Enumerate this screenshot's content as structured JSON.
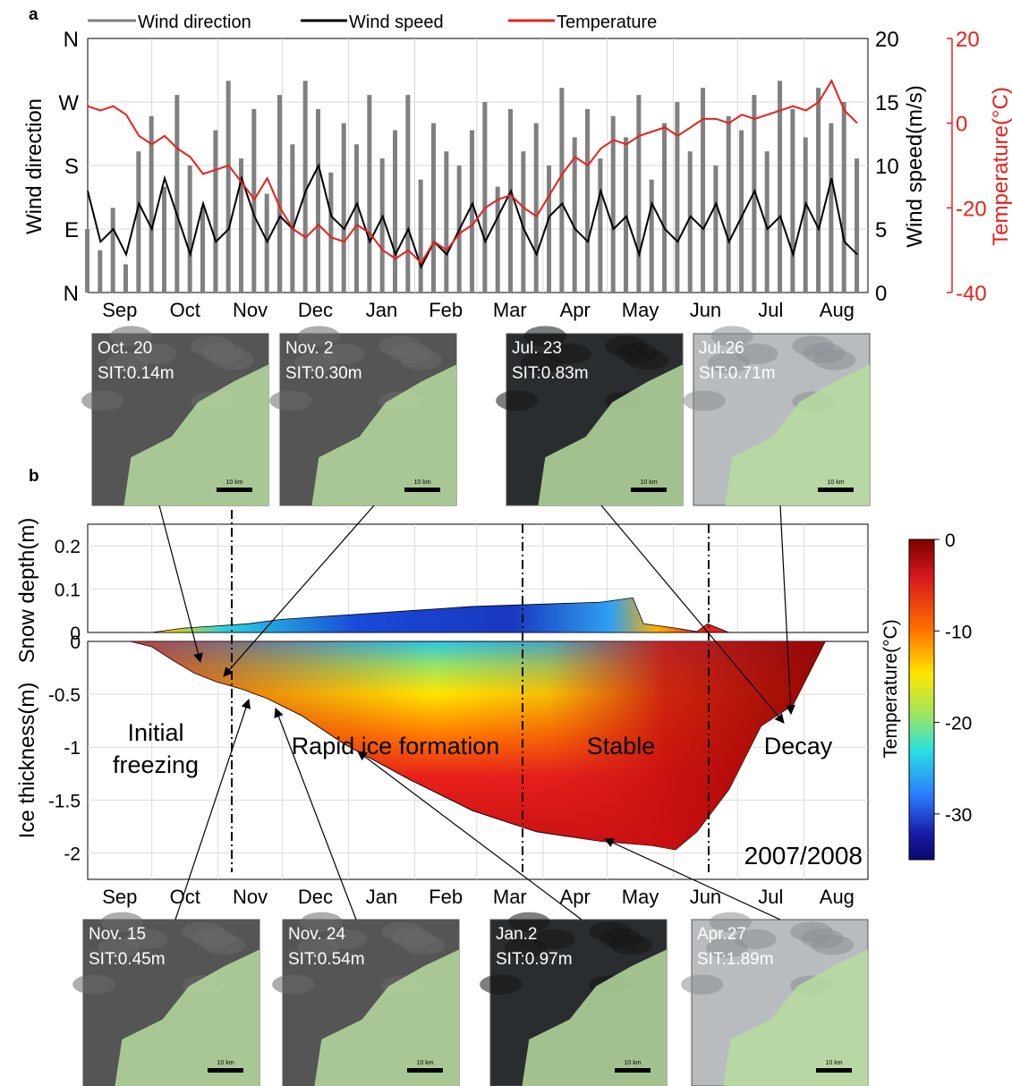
{
  "colors": {
    "wind_direction": "#808080",
    "wind_speed": "#000000",
    "temperature": "#e8201c",
    "right_axis_temperature": "#e8201c",
    "colorbar": [
      "#7f0000",
      "#d7191c",
      "#ff6f00",
      "#ffe600",
      "#9be564",
      "#28e0e0",
      "#2b7bff",
      "#1a1aa6",
      "#0a0a6e"
    ]
  },
  "panel_labels": {
    "a": "a",
    "b": "b"
  },
  "months": [
    "Sep",
    "Oct",
    "Nov",
    "Dec",
    "Jan",
    "Feb",
    "Mar",
    "Apr",
    "May",
    "Jun",
    "Jul",
    "Aug"
  ],
  "chart_data": [
    {
      "type": "line",
      "panel": "a",
      "legend": [
        "Wind direction",
        "Wind speed",
        "Temperature"
      ],
      "legend_placement": "top",
      "xlabel": "",
      "ylabel_left": "Wind direction",
      "ylabel_right": "Wind speed(m/s)",
      "ylabel_far_right": "Temperature(°C)",
      "left_ticks": [
        "N",
        "W",
        "S",
        "E",
        "N"
      ],
      "wind_speed_ticks": [
        "20",
        "15",
        "10",
        "5",
        "0"
      ],
      "temperature_ticks": [
        "20",
        "0",
        "-20",
        "-40"
      ],
      "wind_speed_ylim": [
        0,
        20
      ],
      "temperature_ylim": [
        -40,
        20
      ],
      "grid": true,
      "x_unit": "day index from 1 Sep 2007",
      "series": [
        {
          "name": "Temperature",
          "x": [
            0,
            6,
            12,
            18,
            24,
            30,
            36,
            42,
            48,
            54,
            60,
            66,
            72,
            78,
            84,
            90,
            96,
            102,
            108,
            114,
            120,
            126,
            132,
            138,
            144,
            150,
            156,
            162,
            168,
            174,
            180,
            186,
            192,
            198,
            204,
            210,
            216,
            222,
            228,
            234,
            240,
            246,
            252,
            258,
            264,
            270,
            276,
            282,
            288,
            294,
            300,
            306,
            312,
            318,
            324,
            330,
            336,
            342,
            348,
            354,
            360
          ],
          "values": [
            4,
            3,
            4,
            2,
            -3,
            -5,
            -3,
            -6,
            -8,
            -12,
            -11,
            -10,
            -14,
            -18,
            -13,
            -20,
            -25,
            -27,
            -24,
            -27,
            -28,
            -24,
            -26,
            -30,
            -32,
            -30,
            -33,
            -28,
            -30,
            -26,
            -24,
            -20,
            -18,
            -17,
            -20,
            -22,
            -17,
            -12,
            -8,
            -10,
            -6,
            -4,
            -5,
            -3,
            -2,
            -1,
            -3,
            -1,
            1,
            1,
            0,
            2,
            1,
            2,
            3,
            4,
            3,
            5,
            10,
            3,
            0
          ]
        },
        {
          "name": "Wind speed",
          "x": [
            0,
            6,
            12,
            18,
            24,
            30,
            36,
            42,
            48,
            54,
            60,
            66,
            72,
            78,
            84,
            90,
            96,
            102,
            108,
            114,
            120,
            126,
            132,
            138,
            144,
            150,
            156,
            162,
            168,
            174,
            180,
            186,
            192,
            198,
            204,
            210,
            216,
            222,
            228,
            234,
            240,
            246,
            252,
            258,
            264,
            270,
            276,
            282,
            288,
            294,
            300,
            306,
            312,
            318,
            324,
            330,
            336,
            342,
            348,
            354,
            360
          ],
          "values": [
            8,
            4,
            5,
            3,
            7,
            5,
            9,
            6,
            3,
            7,
            4,
            5,
            9,
            6,
            4,
            6,
            5,
            8,
            10,
            6,
            5,
            7,
            4,
            6,
            3,
            5,
            2,
            4,
            3,
            5,
            7,
            4,
            6,
            8,
            5,
            3,
            6,
            7,
            5,
            4,
            8,
            5,
            6,
            3,
            7,
            5,
            4,
            6,
            5,
            7,
            4,
            6,
            8,
            5,
            6,
            3,
            7,
            5,
            9,
            4,
            3
          ]
        },
        {
          "name": "Wind direction",
          "x": [
            0,
            6,
            12,
            18,
            24,
            30,
            36,
            42,
            48,
            54,
            60,
            66,
            72,
            78,
            84,
            90,
            96,
            102,
            108,
            114,
            120,
            126,
            132,
            138,
            144,
            150,
            156,
            162,
            168,
            174,
            180,
            186,
            192,
            198,
            204,
            210,
            216,
            222,
            228,
            234,
            240,
            246,
            252,
            258,
            264,
            270,
            276,
            282,
            288,
            294,
            300,
            306,
            312,
            318,
            324,
            330,
            336,
            342,
            348,
            354,
            360
          ],
          "values": [
            90,
            60,
            120,
            40,
            200,
            250,
            150,
            280,
            180,
            120,
            230,
            300,
            190,
            260,
            140,
            280,
            210,
            300,
            260,
            170,
            240,
            210,
            280,
            190,
            230,
            280,
            160,
            240,
            200,
            180,
            230,
            270,
            150,
            260,
            200,
            240,
            180,
            290,
            220,
            260,
            190,
            250,
            220,
            280,
            160,
            240,
            270,
            200,
            290,
            180,
            250,
            230,
            280,
            200,
            300,
            260,
            220,
            290,
            240,
            270,
            190
          ]
        }
      ]
    },
    {
      "type": "area",
      "panel": "b-snow",
      "ylabel": "Snow depth(m)",
      "yticks": [
        "0.2",
        "0.1",
        "0"
      ],
      "ylim": [
        0,
        0.25
      ],
      "x_unit": "day index from 1 Sep 2007",
      "x": [
        0,
        30,
        45,
        60,
        75,
        90,
        120,
        150,
        180,
        210,
        240,
        255,
        260,
        275,
        285,
        290,
        300,
        320,
        360
      ],
      "values": [
        0,
        0,
        0.01,
        0.015,
        0.02,
        0.03,
        0.04,
        0.05,
        0.06,
        0.065,
        0.07,
        0.08,
        0.02,
        0.01,
        0.002,
        0.02,
        0,
        0,
        0
      ]
    },
    {
      "type": "area",
      "panel": "b-ice",
      "ylabel": "Ice thickness(m)",
      "yticks": [
        "0",
        "-0.5",
        "-1",
        "-1.5",
        "-2"
      ],
      "ylim": [
        -2.25,
        0
      ],
      "x_unit": "day index from 1 Sep 2007",
      "x": [
        0,
        20,
        30,
        40,
        50,
        60,
        72,
        84,
        100,
        120,
        150,
        180,
        210,
        240,
        264,
        275,
        285,
        300,
        315,
        330,
        345,
        360
      ],
      "values": [
        0,
        0,
        -0.05,
        -0.18,
        -0.3,
        -0.38,
        -0.45,
        -0.54,
        -0.7,
        -0.97,
        -1.3,
        -1.6,
        -1.8,
        -1.89,
        -1.93,
        -1.97,
        -1.8,
        -1.4,
        -0.8,
        -0.6,
        0,
        0
      ],
      "phases": [
        "Initial\nfreezing",
        "Rapid ice formation",
        "Stable",
        "Decay"
      ],
      "year_label": "2007/2008",
      "colorbar": {
        "label": "Temperature(°C)",
        "ticks": [
          "0",
          "-10",
          "-20",
          "-30"
        ],
        "range": [
          -35,
          0
        ]
      }
    }
  ],
  "thumbnails_top": [
    {
      "date": "Oct. 20",
      "sit": "SIT:0.14m",
      "scale": "10 km"
    },
    {
      "date": "Nov. 2",
      "sit": "SIT:0.30m",
      "scale": "10 km"
    },
    {
      "date": "Jul. 23",
      "sit": "SIT:0.83m",
      "scale": "10 km"
    },
    {
      "date": "Jul.26",
      "sit": "SIT:0.71m",
      "scale": "10 km"
    }
  ],
  "thumbnails_bottom": [
    {
      "date": "Nov. 15",
      "sit": "SIT:0.45m",
      "scale": "10 km"
    },
    {
      "date": "Nov. 24",
      "sit": "SIT:0.54m",
      "scale": "10 km"
    },
    {
      "date": "Jan.2",
      "sit": "SIT:0.97m",
      "scale": "10 km"
    },
    {
      "date": "Apr.27",
      "sit": "SIT:1.89m",
      "scale": "10 km"
    }
  ]
}
